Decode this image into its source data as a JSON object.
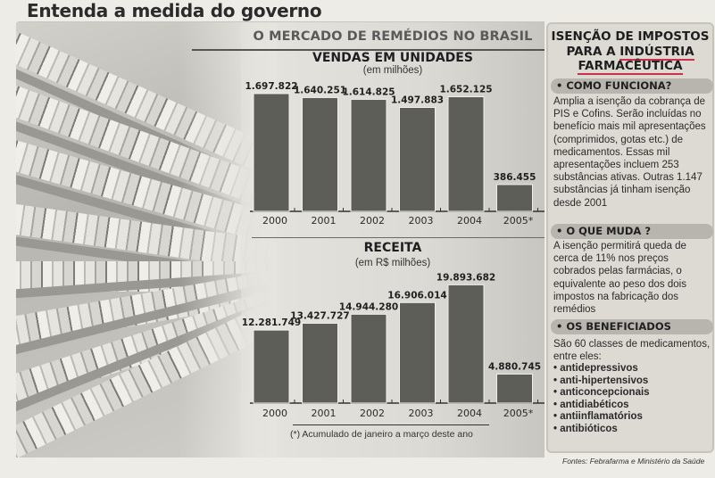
{
  "headline": "Entenda a medida do governo",
  "infographic_title": "O MERCADO DE REMÉDIOS NO BRASIL",
  "chart_data": [
    {
      "type": "bar",
      "title": "VENDAS EM UNIDADES",
      "subtitle": "(em milhões)",
      "categories": [
        "2000",
        "2001",
        "2002",
        "2003",
        "2004",
        "2005*"
      ],
      "values": [
        1697.822,
        1640.251,
        1614.825,
        1497.883,
        1652.125,
        386.455
      ],
      "value_labels": [
        "1.697.822",
        "1.640.251",
        "1.614.825",
        "1.497.883",
        "1.652.125",
        "386.455"
      ],
      "xlabel": "",
      "ylabel": "",
      "ylim": [
        0,
        1800
      ],
      "grid": false,
      "bar_color": "#5e5e58"
    },
    {
      "type": "bar",
      "title": "RECEITA",
      "subtitle": "(em R$ milhões)",
      "categories": [
        "2000",
        "2001",
        "2002",
        "2003",
        "2004",
        "2005*"
      ],
      "values": [
        12281.749,
        13427.727,
        14944.28,
        16906.014,
        19893.682,
        4880.745
      ],
      "value_labels": [
        "12.281.749",
        "13.427.727",
        "14.944.280",
        "16.906.014",
        "19.893.682",
        "4.880.745"
      ],
      "xlabel": "",
      "ylabel": "",
      "ylim": [
        0,
        21000
      ],
      "grid": false,
      "bar_color": "#5e5e58"
    }
  ],
  "footnote": "(*) Acumulado de janeiro a março deste ano",
  "sidebar": {
    "title_lines": [
      "ISENÇÃO DE IMPOSTOS",
      "PARA A ",
      "INDÚSTRIA",
      "FARMACÊUTICA"
    ],
    "accent_color": "#c8324a",
    "sections": [
      {
        "heading": "• COMO FUNCIONA?",
        "body": "Amplia a isenção da cobrança de PIS e Cofins. Serão incluídas no benefício mais mil apresentações (comprimidos, gotas etc.) de medicamentos. Essas mil apresentações incluem 253 substâncias ativas. Outras 1.147 substâncias já tinham isenção desde 2001"
      },
      {
        "heading": "• O QUE MUDA ?",
        "body": "A isenção permitirá queda de cerca de 11% nos preços cobrados pelas farmácias, o equivalente ao peso dos dois impostos na fabricação dos remédios"
      },
      {
        "heading": "• OS BENEFICIADOS",
        "body": "São 60 classes de medicamentos, entre eles:",
        "items": [
          "antidepressivos",
          "anti-hipertensivos",
          "anticoncepcionais",
          "antidiabéticos",
          "antiinflamatórios",
          "antibióticos"
        ]
      }
    ]
  },
  "sources": "Fontes: Febrafarma e Ministério da Saúde"
}
